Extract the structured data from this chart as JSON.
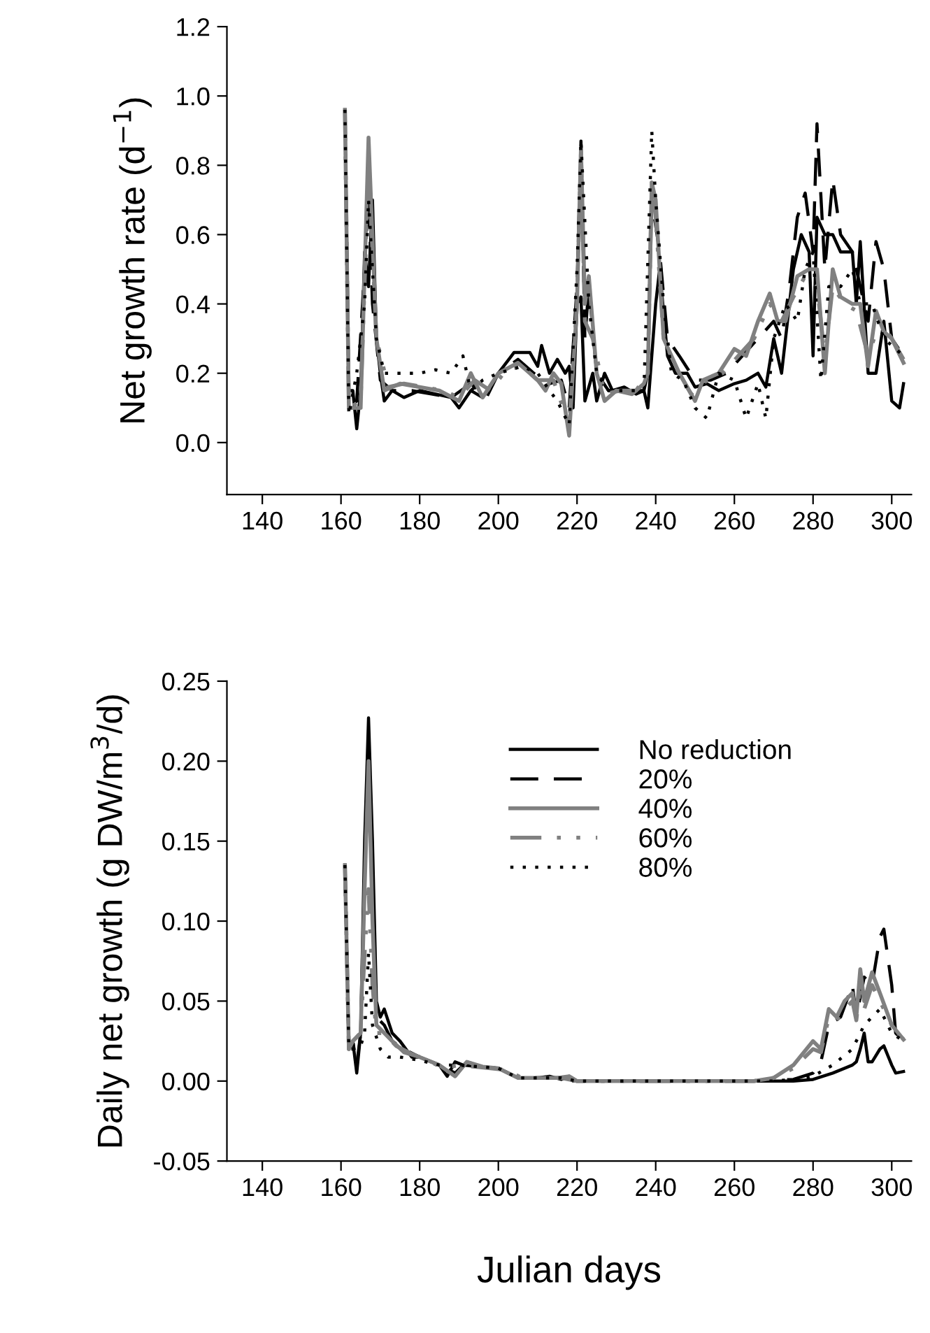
{
  "chart_data": [
    {
      "type": "line",
      "ylabel": "Net growth rate (d$^{−1}$)",
      "xlim": [
        131,
        305
      ],
      "xticks": [
        140,
        160,
        180,
        200,
        220,
        240,
        260,
        280,
        300
      ],
      "ylim": [
        -0.15,
        1.2
      ],
      "yticks": [
        {
          "value": 0,
          "label": "0.0"
        },
        0.2,
        0.4,
        0.6,
        0.8,
        {
          "value": 1,
          "label": "1.0"
        },
        1.2
      ],
      "grid": false,
      "legend": false,
      "series": [
        {
          "color": "#000000",
          "line_style": "solid",
          "x": [
            161,
            162,
            163,
            164,
            165,
            166,
            167,
            168,
            169,
            170,
            171,
            173,
            176,
            180,
            184,
            188,
            190,
            193,
            196,
            200,
            204,
            208,
            210,
            211,
            213,
            215,
            217,
            218,
            219,
            220,
            221,
            222,
            224,
            225,
            227,
            229,
            232,
            235,
            237,
            238,
            240,
            241,
            243,
            245,
            248,
            250,
            253,
            256,
            260,
            263,
            266,
            268,
            270,
            272,
            275,
            277,
            279,
            280,
            281,
            283,
            285,
            287,
            290,
            291,
            292,
            294,
            296,
            298,
            300,
            302,
            303
          ],
          "values": [
            0.96,
            0.15,
            0.15,
            0.04,
            0.15,
            0.55,
            0.45,
            0.7,
            0.3,
            0.2,
            0.12,
            0.15,
            0.13,
            0.15,
            0.14,
            0.13,
            0.1,
            0.15,
            0.13,
            0.2,
            0.26,
            0.26,
            0.22,
            0.28,
            0.2,
            0.24,
            0.2,
            0.22,
            0.1,
            0.4,
            0.42,
            0.12,
            0.2,
            0.12,
            0.2,
            0.15,
            0.16,
            0.14,
            0.15,
            0.1,
            0.4,
            0.5,
            0.25,
            0.2,
            0.2,
            0.16,
            0.17,
            0.15,
            0.17,
            0.18,
            0.2,
            0.16,
            0.3,
            0.2,
            0.5,
            0.6,
            0.55,
            0.25,
            0.65,
            0.6,
            0.6,
            0.55,
            0.55,
            0.4,
            0.58,
            0.2,
            0.2,
            0.35,
            0.12,
            0.1,
            0.17
          ]
        },
        {
          "color": "#000000",
          "line_style": "dashed",
          "x": [
            161,
            162,
            164,
            166,
            167,
            168,
            170,
            173,
            178,
            183,
            188,
            193,
            197,
            200,
            205,
            209,
            213,
            216,
            218,
            220,
            221,
            222,
            223,
            225,
            228,
            233,
            237,
            238,
            239,
            241,
            243,
            246,
            250,
            254,
            258,
            262,
            266,
            270,
            272,
            274,
            276,
            278,
            280,
            281,
            283,
            285,
            287,
            290,
            292,
            294,
            296,
            298,
            300,
            303
          ],
          "values": [
            0.96,
            0.1,
            0.12,
            0.5,
            0.72,
            0.4,
            0.18,
            0.15,
            0.15,
            0.14,
            0.13,
            0.17,
            0.13,
            0.2,
            0.24,
            0.2,
            0.17,
            0.18,
            0.1,
            0.45,
            0.87,
            0.3,
            0.45,
            0.2,
            0.15,
            0.15,
            0.15,
            0.2,
            0.7,
            0.55,
            0.3,
            0.25,
            0.18,
            0.18,
            0.2,
            0.25,
            0.3,
            0.35,
            0.3,
            0.45,
            0.65,
            0.72,
            0.55,
            0.92,
            0.5,
            0.76,
            0.6,
            0.55,
            0.45,
            0.35,
            0.58,
            0.5,
            0.3,
            0.25
          ]
        },
        {
          "color": "#808080",
          "line_style": "solid",
          "x": [
            161,
            162,
            165,
            167,
            169,
            171,
            175,
            180,
            185,
            190,
            193,
            196,
            200,
            205,
            208,
            210,
            212,
            214,
            216,
            218,
            220,
            221,
            222,
            223,
            225,
            227,
            230,
            234,
            237,
            238,
            239,
            240,
            242,
            244,
            246,
            250,
            252,
            256,
            260,
            263,
            266,
            269,
            271,
            273,
            276,
            279,
            281,
            283,
            285,
            287,
            290,
            292,
            294,
            296,
            298,
            300,
            303
          ],
          "values": [
            0.96,
            0.1,
            0.1,
            0.88,
            0.3,
            0.15,
            0.17,
            0.16,
            0.15,
            0.12,
            0.2,
            0.13,
            0.2,
            0.23,
            0.2,
            0.18,
            0.15,
            0.2,
            0.17,
            0.02,
            0.4,
            0.85,
            0.4,
            0.48,
            0.2,
            0.12,
            0.15,
            0.14,
            0.17,
            0.2,
            0.75,
            0.7,
            0.3,
            0.25,
            0.2,
            0.12,
            0.18,
            0.2,
            0.27,
            0.25,
            0.35,
            0.43,
            0.35,
            0.35,
            0.48,
            0.5,
            0.5,
            0.2,
            0.5,
            0.42,
            0.4,
            0.4,
            0.22,
            0.38,
            0.32,
            0.3,
            0.23
          ]
        },
        {
          "color": "#808080",
          "line_style": "dashdot",
          "x": [
            161,
            162,
            165,
            167,
            169,
            172,
            176,
            181,
            186,
            190,
            194,
            198,
            202,
            206,
            210,
            214,
            218,
            220,
            221,
            222,
            224,
            227,
            231,
            235,
            238,
            239,
            240,
            242,
            245,
            249,
            253,
            257,
            261,
            265,
            269,
            272,
            275,
            278,
            281,
            283,
            285,
            288,
            291,
            294,
            297,
            300,
            303
          ],
          "values": [
            0.96,
            0.1,
            0.12,
            0.8,
            0.3,
            0.16,
            0.17,
            0.16,
            0.15,
            0.13,
            0.18,
            0.15,
            0.21,
            0.22,
            0.18,
            0.18,
            0.05,
            0.4,
            0.84,
            0.35,
            0.3,
            0.14,
            0.15,
            0.15,
            0.2,
            0.75,
            0.65,
            0.3,
            0.22,
            0.14,
            0.18,
            0.2,
            0.25,
            0.3,
            0.4,
            0.35,
            0.42,
            0.48,
            0.45,
            0.25,
            0.45,
            0.4,
            0.38,
            0.25,
            0.35,
            0.3,
            0.24
          ]
        },
        {
          "color": "#000000",
          "line_style": "dotted",
          "x": [
            161,
            162,
            164,
            166,
            167,
            169,
            171,
            175,
            180,
            184,
            188,
            191,
            193,
            196,
            200,
            206,
            210,
            213,
            215,
            218,
            220,
            221,
            223,
            225,
            228,
            233,
            237,
            239,
            240,
            242,
            244,
            247,
            250,
            253,
            256,
            260,
            263,
            266,
            268,
            270,
            273,
            276,
            278,
            280,
            282,
            284,
            287,
            290,
            292,
            295,
            298,
            303
          ],
          "values": [
            0.96,
            0.08,
            0.2,
            0.4,
            0.7,
            0.3,
            0.2,
            0.2,
            0.2,
            0.21,
            0.2,
            0.25,
            0.15,
            0.18,
            0.2,
            0.22,
            0.2,
            0.15,
            0.12,
            0.05,
            0.5,
            0.87,
            0.4,
            0.2,
            0.15,
            0.15,
            0.15,
            0.9,
            0.7,
            0.4,
            0.2,
            0.18,
            0.1,
            0.07,
            0.2,
            0.18,
            0.07,
            0.17,
            0.07,
            0.3,
            0.4,
            0.35,
            0.5,
            0.55,
            0.18,
            0.45,
            0.45,
            0.5,
            0.4,
            0.4,
            0.3,
            0.25
          ]
        }
      ]
    },
    {
      "type": "line",
      "xlabel": "Julian days",
      "ylabel": "Daily net growth (g DW/m$^{3}$/d)",
      "xlim": [
        131,
        305
      ],
      "xticks": [
        140,
        160,
        180,
        200,
        220,
        240,
        260,
        280,
        300
      ],
      "ylim": [
        -0.05,
        0.25
      ],
      "yticks": [
        {
          "value": -0.05,
          "label": "-0.05"
        },
        {
          "value": 0,
          "label": "0.00"
        },
        0.05,
        {
          "value": 0.1,
          "label": "0.10"
        },
        0.15,
        {
          "value": 0.2,
          "label": "0.20"
        },
        0.25
      ],
      "grid": false,
      "legend": "top",
      "series": [
        {
          "name": "No reduction",
          "color": "#000000",
          "line_style": "solid",
          "x": [
            161,
            162,
            163,
            164,
            165,
            166,
            167,
            168,
            169,
            170,
            171,
            173,
            175,
            178,
            180,
            183,
            185,
            187,
            189,
            191,
            195,
            200,
            205,
            210,
            213,
            216,
            218,
            219,
            230,
            260,
            275,
            280,
            285,
            290,
            291,
            292,
            293,
            294,
            295,
            297,
            298,
            300,
            301,
            303
          ],
          "values": [
            0.135,
            0.02,
            0.025,
            0.005,
            0.03,
            0.15,
            0.227,
            0.15,
            0.05,
            0.04,
            0.045,
            0.03,
            0.025,
            0.015,
            0.015,
            0.012,
            0.01,
            0.003,
            0.012,
            0.01,
            0.009,
            0.008,
            0.002,
            0.002,
            0.003,
            0.001,
            0.003,
            0.0,
            0.0,
            0.0,
            0.0,
            0.001,
            0.005,
            0.01,
            0.012,
            0.02,
            0.03,
            0.012,
            0.012,
            0.02,
            0.022,
            0.01,
            0.005,
            0.006
          ]
        },
        {
          "name": "20%",
          "color": "#000000",
          "line_style": "dashed",
          "x": [
            161,
            162,
            163,
            164,
            165,
            166,
            167,
            168,
            169,
            171,
            173,
            176,
            180,
            185,
            189,
            192,
            196,
            200,
            205,
            210,
            215,
            218,
            220,
            240,
            265,
            275,
            280,
            282,
            284,
            287,
            290,
            291,
            293,
            295,
            297,
            298,
            300,
            301,
            303
          ],
          "values": [
            0.135,
            0.02,
            0.025,
            0.01,
            0.03,
            0.13,
            0.2,
            0.12,
            0.04,
            0.035,
            0.025,
            0.02,
            0.015,
            0.01,
            0.005,
            0.012,
            0.009,
            0.008,
            0.002,
            0.002,
            0.002,
            0.003,
            0.0,
            0.0,
            0.0,
            0.001,
            0.005,
            0.012,
            0.035,
            0.04,
            0.06,
            0.04,
            0.065,
            0.06,
            0.09,
            0.095,
            0.06,
            0.03,
            0.025
          ]
        },
        {
          "name": "40%",
          "color": "#808080",
          "line_style": "solid",
          "x": [
            161,
            162,
            163,
            165,
            166,
            167,
            168,
            169,
            171,
            173,
            176,
            180,
            185,
            189,
            192,
            196,
            200,
            205,
            210,
            215,
            218,
            220,
            240,
            265,
            270,
            275,
            280,
            282,
            284,
            286,
            288,
            290,
            291,
            292,
            293,
            295,
            297,
            300,
            303
          ],
          "values": [
            0.135,
            0.02,
            0.025,
            0.03,
            0.12,
            0.2,
            0.1,
            0.035,
            0.03,
            0.025,
            0.018,
            0.015,
            0.01,
            0.003,
            0.012,
            0.009,
            0.008,
            0.002,
            0.002,
            0.002,
            0.003,
            0.0,
            0.0,
            0.0,
            0.002,
            0.01,
            0.025,
            0.02,
            0.045,
            0.04,
            0.05,
            0.055,
            0.04,
            0.07,
            0.05,
            0.068,
            0.055,
            0.035,
            0.026
          ]
        },
        {
          "name": "60%",
          "color": "#808080",
          "line_style": "dashdot",
          "x": [
            161,
            162,
            163,
            165,
            166,
            167,
            168,
            169,
            171,
            174,
            178,
            182,
            186,
            190,
            194,
            198,
            202,
            206,
            210,
            216,
            220,
            240,
            265,
            270,
            275,
            280,
            282,
            284,
            286,
            288,
            290,
            291,
            292,
            293,
            295,
            297,
            300,
            303
          ],
          "values": [
            0.135,
            0.02,
            0.025,
            0.03,
            0.08,
            0.12,
            0.06,
            0.03,
            0.03,
            0.022,
            0.017,
            0.013,
            0.008,
            0.01,
            0.009,
            0.008,
            0.007,
            0.002,
            0.002,
            0.002,
            0.0,
            0.0,
            0.0,
            0.002,
            0.008,
            0.02,
            0.018,
            0.04,
            0.038,
            0.045,
            0.05,
            0.038,
            0.06,
            0.045,
            0.06,
            0.05,
            0.035,
            0.026
          ]
        },
        {
          "name": "80%",
          "color": "#000000",
          "line_style": "dotted",
          "x": [
            161,
            162,
            163,
            165,
            166,
            167,
            168,
            170,
            172,
            175,
            180,
            185,
            190,
            195,
            200,
            205,
            210,
            216,
            220,
            240,
            270,
            275,
            280,
            285,
            290,
            293,
            295,
            297,
            300,
            303
          ],
          "values": [
            0.135,
            0.02,
            0.02,
            0.022,
            0.03,
            0.08,
            0.035,
            0.02,
            0.015,
            0.015,
            0.013,
            0.01,
            0.01,
            0.009,
            0.008,
            0.002,
            0.002,
            0.002,
            0.0,
            0.0,
            0.0,
            0.001,
            0.003,
            0.01,
            0.02,
            0.035,
            0.04,
            0.045,
            0.03,
            0.025
          ]
        }
      ]
    }
  ]
}
